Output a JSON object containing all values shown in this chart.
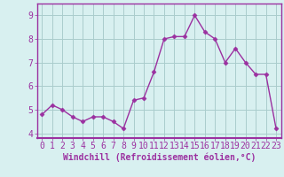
{
  "x": [
    0,
    1,
    2,
    3,
    4,
    5,
    6,
    7,
    8,
    9,
    10,
    11,
    12,
    13,
    14,
    15,
    16,
    17,
    18,
    19,
    20,
    21,
    22,
    23
  ],
  "y": [
    4.8,
    5.2,
    5.0,
    4.7,
    4.5,
    4.7,
    4.7,
    4.5,
    4.2,
    5.4,
    5.5,
    6.6,
    8.0,
    8.1,
    8.1,
    9.0,
    8.3,
    8.0,
    7.0,
    7.6,
    7.0,
    6.5,
    6.5,
    4.2
  ],
  "line_color": "#9b30a0",
  "marker": "D",
  "marker_size": 2.5,
  "bg_color": "#d8f0f0",
  "grid_color": "#aacccc",
  "xlabel": "Windchill (Refroidissement éolien,°C)",
  "xlabel_fontsize": 7,
  "xtick_labels": [
    "0",
    "1",
    "2",
    "3",
    "4",
    "5",
    "6",
    "7",
    "8",
    "9",
    "10",
    "11",
    "12",
    "13",
    "14",
    "15",
    "16",
    "17",
    "18",
    "19",
    "20",
    "21",
    "22",
    "23"
  ],
  "ylim": [
    3.8,
    9.5
  ],
  "yticks": [
    4,
    5,
    6,
    7,
    8,
    9
  ],
  "tick_fontsize": 7,
  "line_width": 1.0,
  "spine_color": "#9b30a0"
}
